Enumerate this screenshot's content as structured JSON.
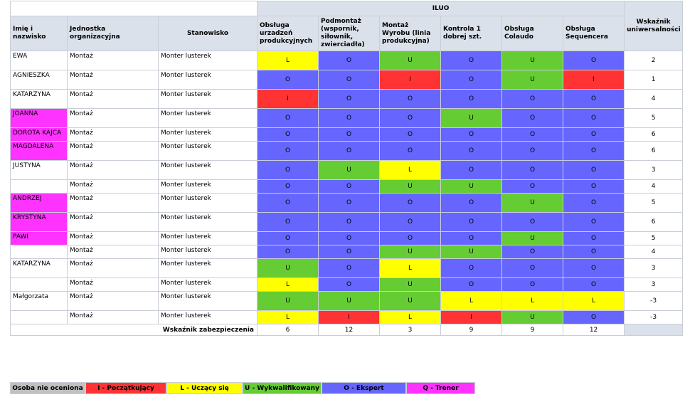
{
  "header": {
    "col_name": "Imię i nazwisko",
    "col_unit": "Jednostka organizacyjna",
    "col_position": "Stanowisko",
    "group_title": "ILUO",
    "col_universality": "Wskaźnik uniwersalności",
    "skills": [
      "Obsługa urzadzeń produkcyjnych",
      "Podmontaż (wspornik, siłownik, zwierciadła)",
      "Montaż Wyrobu (linia produkcyjna)",
      "Kontrola 1 dobrej szt.",
      "Obsługa Colaudo",
      "Obsługa Sequencera"
    ]
  },
  "colors": {
    "I": "#ff3333",
    "L": "#ffff00",
    "U": "#66cc33",
    "O": "#6666ff",
    "Q": "#ff33ff",
    "none": "#c0c0c0",
    "header_bg": "#dbe1ea"
  },
  "rows": [
    {
      "name": "EWA",
      "unit": "Montaż",
      "position": "Monter lusterek",
      "highlight": false,
      "levels": [
        "L",
        "O",
        "U",
        "O",
        "U",
        "O"
      ],
      "index": "2"
    },
    {
      "name": "AGNIESZKA",
      "unit": "Montaż",
      "position": "Monter lusterek",
      "highlight": false,
      "levels": [
        "O",
        "O",
        "I",
        "O",
        "U",
        "I"
      ],
      "index": "1"
    },
    {
      "name": "KATARZYNA",
      "unit": "Montaż",
      "position": "Monter lusterek",
      "highlight": false,
      "levels": [
        "I",
        "O",
        "O",
        "O",
        "O",
        "O"
      ],
      "index": "4"
    },
    {
      "name": "JOANNA",
      "unit": "Montaż",
      "position": "Monter lusterek",
      "highlight": true,
      "levels": [
        "O",
        "O",
        "O",
        "U",
        "O",
        "O"
      ],
      "index": "5"
    },
    {
      "name": "DOROTA KAJCA",
      "unit": "Montaż",
      "position": "Monter lusterek",
      "highlight": true,
      "levels": [
        "O",
        "O",
        "O",
        "O",
        "O",
        "O"
      ],
      "index": "6"
    },
    {
      "name": "MAGDALENA",
      "unit": "Montaż",
      "position": "Monter lusterek",
      "highlight": true,
      "levels": [
        "O",
        "O",
        "O",
        "O",
        "O",
        "O"
      ],
      "index": "6"
    },
    {
      "name": "JUSTYNA",
      "unit": "Montaż",
      "position": "Monter lusterek",
      "highlight": false,
      "levels": [
        "O",
        "U",
        "L",
        "O",
        "O",
        "O"
      ],
      "index": "3"
    },
    {
      "name": "",
      "unit": "Montaż",
      "position": "Monter lusterek",
      "highlight": false,
      "levels": [
        "O",
        "O",
        "U",
        "U",
        "O",
        "O"
      ],
      "index": "4"
    },
    {
      "name": "ANDRZEJ",
      "unit": "Montaż",
      "position": "Monter lusterek",
      "highlight": true,
      "levels": [
        "O",
        "O",
        "O",
        "O",
        "U",
        "O"
      ],
      "index": "5"
    },
    {
      "name": "KRYSTYNA",
      "unit": "Montaż",
      "position": "Monter lusterek",
      "highlight": true,
      "levels": [
        "O",
        "O",
        "O",
        "O",
        "O",
        "O"
      ],
      "index": "6"
    },
    {
      "name": "PAWI",
      "unit": "Montaż",
      "position": "Monter lusterek",
      "highlight": true,
      "levels": [
        "O",
        "O",
        "O",
        "O",
        "U",
        "O"
      ],
      "index": "5"
    },
    {
      "name": "",
      "unit": "Montaż",
      "position": "Monter lusterek",
      "highlight": false,
      "levels": [
        "O",
        "O",
        "U",
        "U",
        "O",
        "O"
      ],
      "index": "4"
    },
    {
      "name": "KATARZYNA",
      "unit": "Montaż",
      "position": "Monter lusterek",
      "highlight": false,
      "levels": [
        "U",
        "O",
        "L",
        "O",
        "O",
        "O"
      ],
      "index": "3"
    },
    {
      "name": "",
      "unit": "Montaż",
      "position": "Monter lusterek",
      "highlight": false,
      "levels": [
        "L",
        "O",
        "U",
        "O",
        "O",
        "O"
      ],
      "index": "3"
    },
    {
      "name": "Małgorzata",
      "unit": "Montaż",
      "position": "Monter lusterek",
      "highlight": false,
      "levels": [
        "U",
        "U",
        "U",
        "L",
        "L",
        "L"
      ],
      "index": "-3"
    },
    {
      "name": "",
      "unit": "Montaż",
      "position": "Monter lusterek",
      "highlight": false,
      "levels": [
        "L",
        "I",
        "L",
        "I",
        "U",
        "O"
      ],
      "index": "-3"
    }
  ],
  "footer": {
    "label": "Wskaźnik zabezpieczenia",
    "values": [
      "6",
      "12",
      "3",
      "9",
      "9",
      "12"
    ]
  },
  "legend": [
    {
      "key": "none",
      "label": "Osoba nie oceniona"
    },
    {
      "key": "I",
      "label": "I - Początkujący"
    },
    {
      "key": "L",
      "label": "L - Uczący się"
    },
    {
      "key": "U",
      "label": "U - Wykwalifikowany"
    },
    {
      "key": "O",
      "label": "O - Ekspert"
    },
    {
      "key": "Q",
      "label": "Q - Trener"
    }
  ]
}
